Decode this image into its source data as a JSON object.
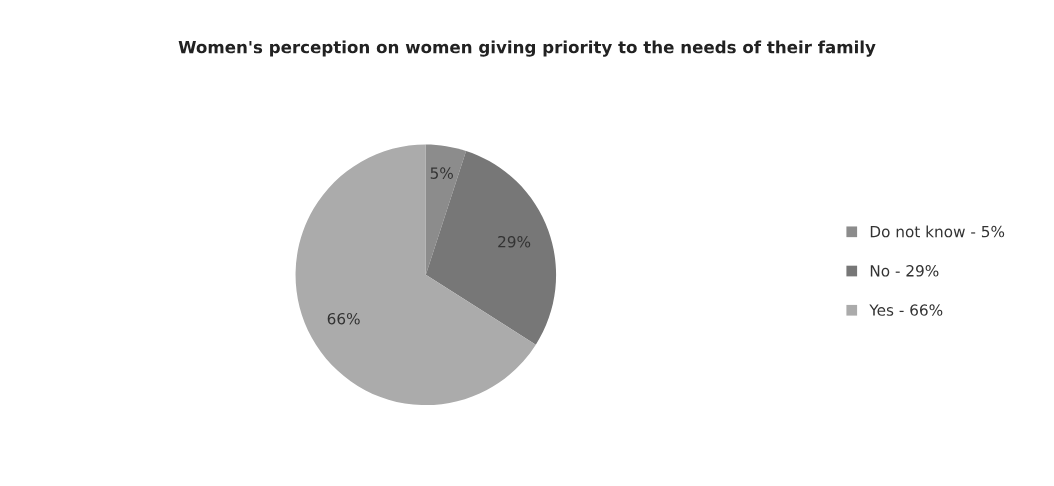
{
  "chart_data": {
    "type": "pie",
    "title": "Women's perception on women giving priority to the needs of their family",
    "categories": [
      "Do not know - 5%",
      "No - 29%",
      "Yes - 66%"
    ],
    "values": [
      5,
      29,
      66
    ],
    "colors": [
      "#8c8c8c",
      "#777777",
      "#ababab"
    ],
    "value_labels": [
      "5%",
      "29%",
      "66%"
    ],
    "legend": "right"
  }
}
